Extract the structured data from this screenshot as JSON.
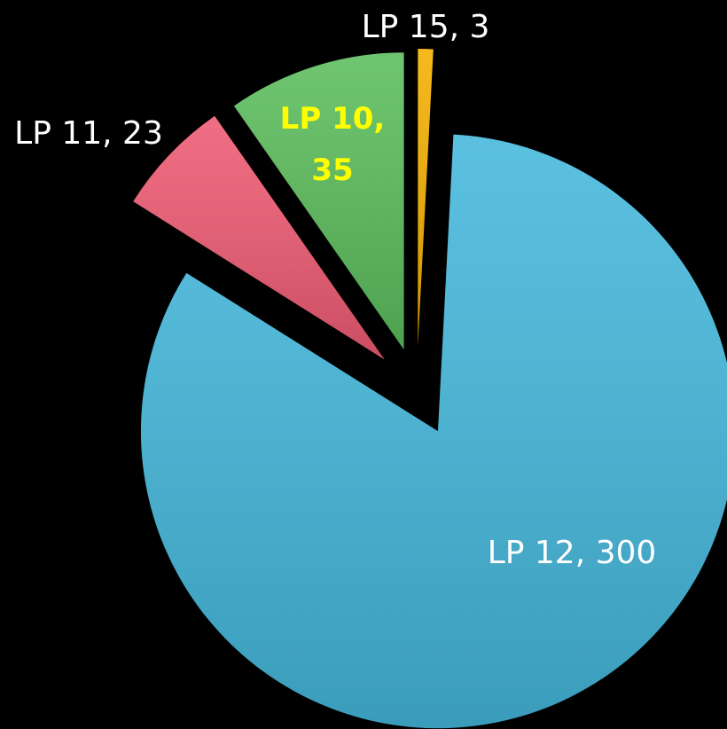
{
  "chart_data": {
    "type": "pie",
    "categories": [
      "LP 15",
      "LP 12",
      "LP 11",
      "LP 10"
    ],
    "values": [
      3,
      300,
      23,
      35
    ],
    "value_labels": [
      "LP 15, 3",
      "LP 12, 300",
      "LP 11, 23",
      "LP 10, 35"
    ],
    "colors": [
      "#f4b000",
      "#45b8dc",
      "#ef5b73",
      "#5cbd5c"
    ]
  }
}
